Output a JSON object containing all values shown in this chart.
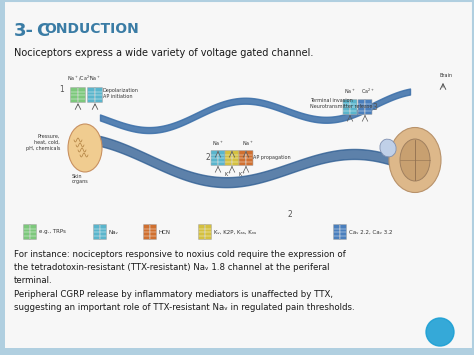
{
  "title_num": "3-",
  "title_C": "C",
  "title_rest": "ONDUCTION",
  "subtitle": "Nociceptors express a wide variety of voltage gated channel.",
  "body_text1": "For instance: nociceptors responsive to noxius cold require the expression of\nthe tetradotoxin-resistant (TTX-resistant) Naᵥ 1.8 channel at the periferal\nterminal.",
  "body_text2": "Peripheral CGRP release by inflammatory mediators is unaffected by TTX,\nsuggesting an important role of TTX-resistant Naᵥ in regulated pain thresholds.",
  "bg_color": "#f7f7f7",
  "border_left_color": "#b0cfe0",
  "border_bottom_color": "#b0cfe0",
  "title_color": "#3a7ca5",
  "text_color": "#1a1a1a",
  "highlight_color": "#1a9fd4",
  "figsize": [
    4.74,
    3.55
  ],
  "dpi": 100
}
